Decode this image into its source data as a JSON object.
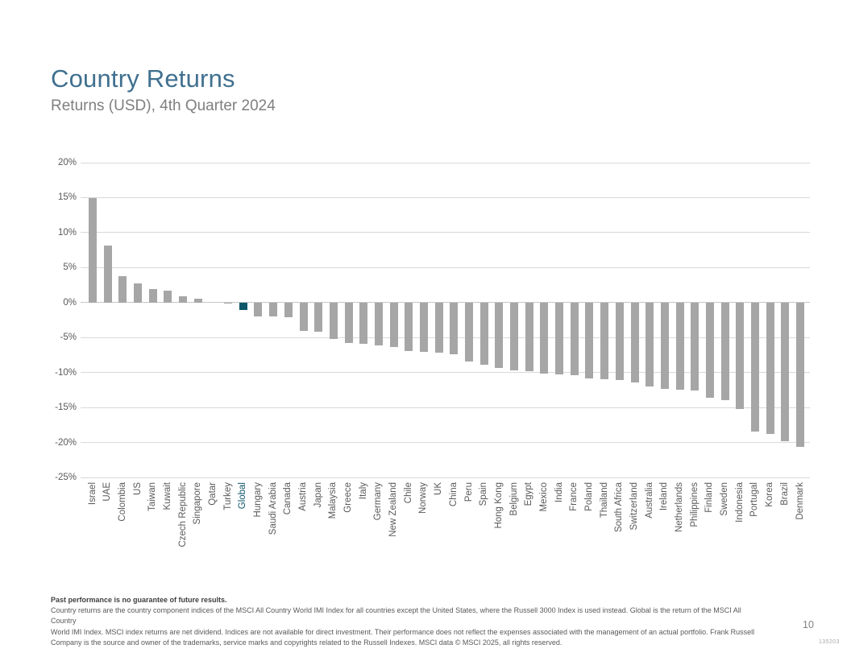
{
  "slide": {
    "title": "Country Returns",
    "subtitle": "Returns (USD), 4th Quarter 2024",
    "page_number": "10",
    "doc_number": "135203"
  },
  "colors": {
    "title_text": "#40708f",
    "subtitle_text": "#7f7f7f",
    "bar": "#a6a6a6",
    "highlight": "#0e566a",
    "gridline": "#d9d9d9",
    "zero_line": "#c6c6c6",
    "axis_text": "#595959",
    "footnote_text": "#595959",
    "footnote_bold_text": "#404040",
    "page_number_text": "#7f7f7f",
    "doc_number_text": "#a8a8a8"
  },
  "chart_data": {
    "type": "bar",
    "title": "Country Returns",
    "subtitle": "Returns (USD), 4th Quarter 2024",
    "xlabel": "",
    "ylabel": "",
    "ylim": [
      -25,
      20
    ],
    "grid": true,
    "yticks": [
      {
        "label": "20%",
        "value": 20
      },
      {
        "label": "15%",
        "value": 15
      },
      {
        "label": "10%",
        "value": 10
      },
      {
        "label": "5%",
        "value": 5
      },
      {
        "label": "0%",
        "value": 0
      },
      {
        "label": "-5%",
        "value": -5
      },
      {
        "label": "-10%",
        "value": -10
      },
      {
        "label": "-15%",
        "value": -15
      },
      {
        "label": "-20%",
        "value": -20
      },
      {
        "label": "-25%",
        "value": -25
      }
    ],
    "categories": [
      "Israel",
      "UAE",
      "Colombia",
      "US",
      "Taiwan",
      "Kuwait",
      "Czech Republic",
      "Singapore",
      "Qatar",
      "Turkey",
      "Global",
      "Hungary",
      "Saudi Arabia",
      "Canada",
      "Austria",
      "Japan",
      "Malaysia",
      "Greece",
      "Italy",
      "Germany",
      "New Zealand",
      "Chile",
      "Norway",
      "UK",
      "China",
      "Peru",
      "Spain",
      "Hong Kong",
      "Belgium",
      "Egypt",
      "Mexico",
      "India",
      "France",
      "Poland",
      "Thailand",
      "South Africa",
      "Switzerland",
      "Australia",
      "Ireland",
      "Netherlands",
      "Philippines",
      "Finland",
      "Sweden",
      "Indonesia",
      "Portugal",
      "Korea",
      "Brazil",
      "Denmark"
    ],
    "values": [
      14.9,
      8.2,
      3.8,
      2.7,
      1.9,
      1.7,
      0.9,
      0.6,
      0.0,
      -0.1,
      -1.1,
      -2.0,
      -2.0,
      -2.1,
      -4.0,
      -4.2,
      -5.2,
      -5.8,
      -5.9,
      -6.1,
      -6.4,
      -6.9,
      -7.0,
      -7.2,
      -7.4,
      -8.4,
      -8.9,
      -9.3,
      -9.7,
      -9.8,
      -10.2,
      -10.3,
      -10.4,
      -10.9,
      -11.0,
      -11.1,
      -11.4,
      -12.0,
      -12.3,
      -12.4,
      -12.6,
      -13.6,
      -14.0,
      -15.2,
      -18.4,
      -18.8,
      -19.8,
      -20.6
    ],
    "highlight_category": "Global",
    "legend": null
  },
  "footnote": {
    "bold_line": "Past performance is no guarantee of future results.",
    "line2": "Country returns are the country component indices of the MSCI All Country World IMI Index for all countries except the United States, where the Russell 3000 Index is used instead. Global is the return of the MSCI All Country",
    "line3": "World IMI Index. MSCI index returns are net dividend. Indices are not available for direct investment. Their performance does not reflect the expenses associated with the management of an actual portfolio. Frank Russell",
    "line4": "Company is the source and owner of the trademarks, service marks and copyrights related to the Russell Indexes. MSCI data © MSCI 2025, all rights reserved."
  }
}
